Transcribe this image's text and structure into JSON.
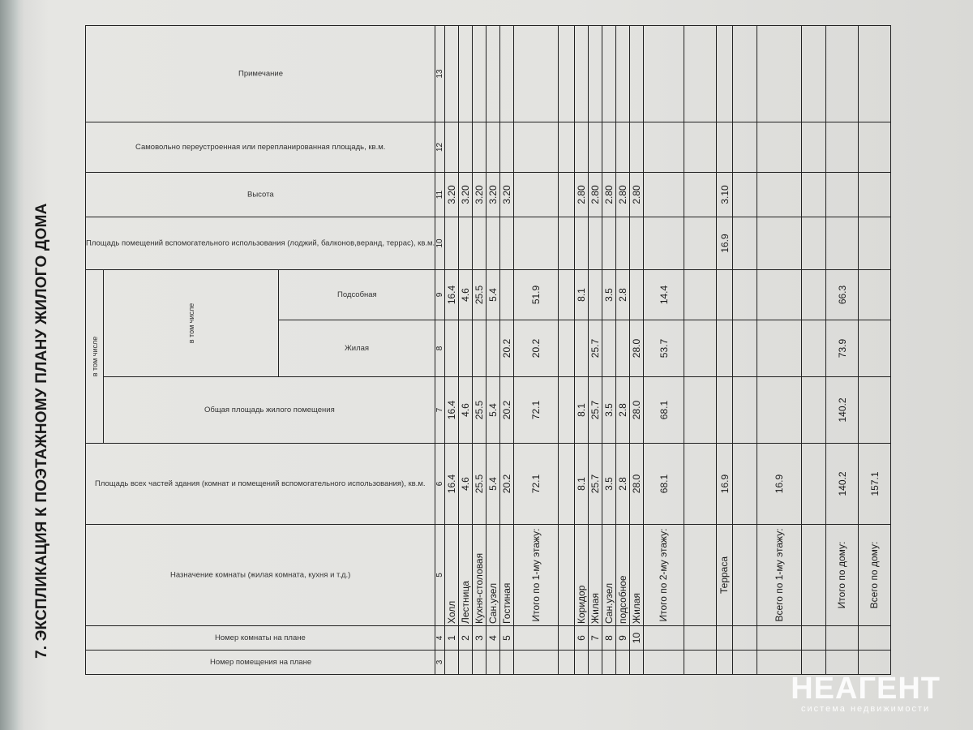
{
  "title": "7. ЭКСПЛИКАЦИЯ К ПОЭТАЖНОМУ ПЛАНУ ЖИЛОГО ДОМА",
  "headers": {
    "c3": "Номер помещения на плане",
    "c4": "Номер комнаты на плане",
    "c5": "Назначение комнаты (жилая комната, кухня и т.д.)",
    "c6": "Площадь всех частей здания (комнат и помещений вспомогательного использования), кв.м.",
    "incl_outer": "в том числе",
    "c7": "Общая площадь жилого помещения",
    "incl_inner": "в том числе",
    "c8": "Жилая",
    "c9": "Подсобная",
    "c10": "Площадь помещений вспомогательного использования (лоджий, балконов,веранд, террас), кв.м.",
    "c11": "Высота",
    "c12": "Самовольно переустроенная или перепланированная площадь, кв.м.",
    "c13": "Примечание"
  },
  "column_numbers": [
    "3",
    "4",
    "5",
    "6",
    "7",
    "8",
    "9",
    "10",
    "11",
    "12",
    "13"
  ],
  "rows": [
    [
      "",
      "1",
      "Холл",
      "16.4",
      "16.4",
      "",
      "16.4",
      "",
      "3.20",
      "",
      ""
    ],
    [
      "",
      "2",
      "Лестница",
      "4.6",
      "4.6",
      "",
      "4.6",
      "",
      "3.20",
      "",
      ""
    ],
    [
      "",
      "3",
      "Кухня-столовая",
      "25.5",
      "25.5",
      "",
      "25.5",
      "",
      "3.20",
      "",
      ""
    ],
    [
      "",
      "4",
      "Сан.узел",
      "5.4",
      "5.4",
      "",
      "5.4",
      "",
      "3.20",
      "",
      ""
    ],
    [
      "",
      "5",
      "Гостиная",
      "20.2",
      "20.2",
      "20.2",
      "",
      "",
      "3.20",
      "",
      ""
    ],
    [
      "",
      "",
      "Итого по 1-му этажу:",
      "72.1",
      "72.1",
      "20.2",
      "51.9",
      "",
      "",
      "",
      ""
    ],
    [
      "",
      "",
      "",
      "",
      "",
      "",
      "",
      "",
      "",
      "",
      ""
    ],
    [
      "",
      "6",
      "Коридор",
      "8.1",
      "8.1",
      "",
      "8.1",
      "",
      "2.80",
      "",
      ""
    ],
    [
      "",
      "7",
      "Жилая",
      "25.7",
      "25.7",
      "25.7",
      "",
      "",
      "2.80",
      "",
      ""
    ],
    [
      "",
      "8",
      "Сан.узел",
      "3.5",
      "3.5",
      "",
      "3.5",
      "",
      "2.80",
      "",
      ""
    ],
    [
      "",
      "9",
      "подсобное",
      "2.8",
      "2.8",
      "",
      "2.8",
      "",
      "2.80",
      "",
      ""
    ],
    [
      "",
      "10",
      "Жилая",
      "28.0",
      "28.0",
      "28.0",
      "",
      "",
      "2.80",
      "",
      ""
    ],
    [
      "",
      "",
      "Итого по 2-му этажу:",
      "68.1",
      "68.1",
      "53.7",
      "14.4",
      "",
      "",
      "",
      ""
    ],
    [
      "",
      "",
      "",
      "",
      "",
      "",
      "",
      "",
      "",
      "",
      ""
    ],
    [
      "",
      "",
      "Терраса",
      "16.9",
      "",
      "",
      "",
      "16.9",
      "3.10",
      "",
      ""
    ],
    [
      "",
      "",
      "",
      "",
      "",
      "",
      "",
      "",
      "",
      "",
      ""
    ],
    [
      "",
      "",
      "Всего по 1-му этажу:",
      "16.9",
      "",
      "",
      "",
      "",
      "",
      "",
      ""
    ],
    [
      "",
      "",
      "",
      "",
      "",
      "",
      "",
      "",
      "",
      "",
      ""
    ],
    [
      "",
      "",
      "Итого по дому:",
      "140.2",
      "140.2",
      "73.9",
      "66.3",
      "",
      "",
      "",
      ""
    ],
    [
      "",
      "",
      "Всего по дому:",
      "157.1",
      "",
      "",
      "",
      "",
      "",
      "",
      ""
    ]
  ],
  "watermark": {
    "brand": "НЕАГЕНТ",
    "tagline": "система недвижимости"
  }
}
